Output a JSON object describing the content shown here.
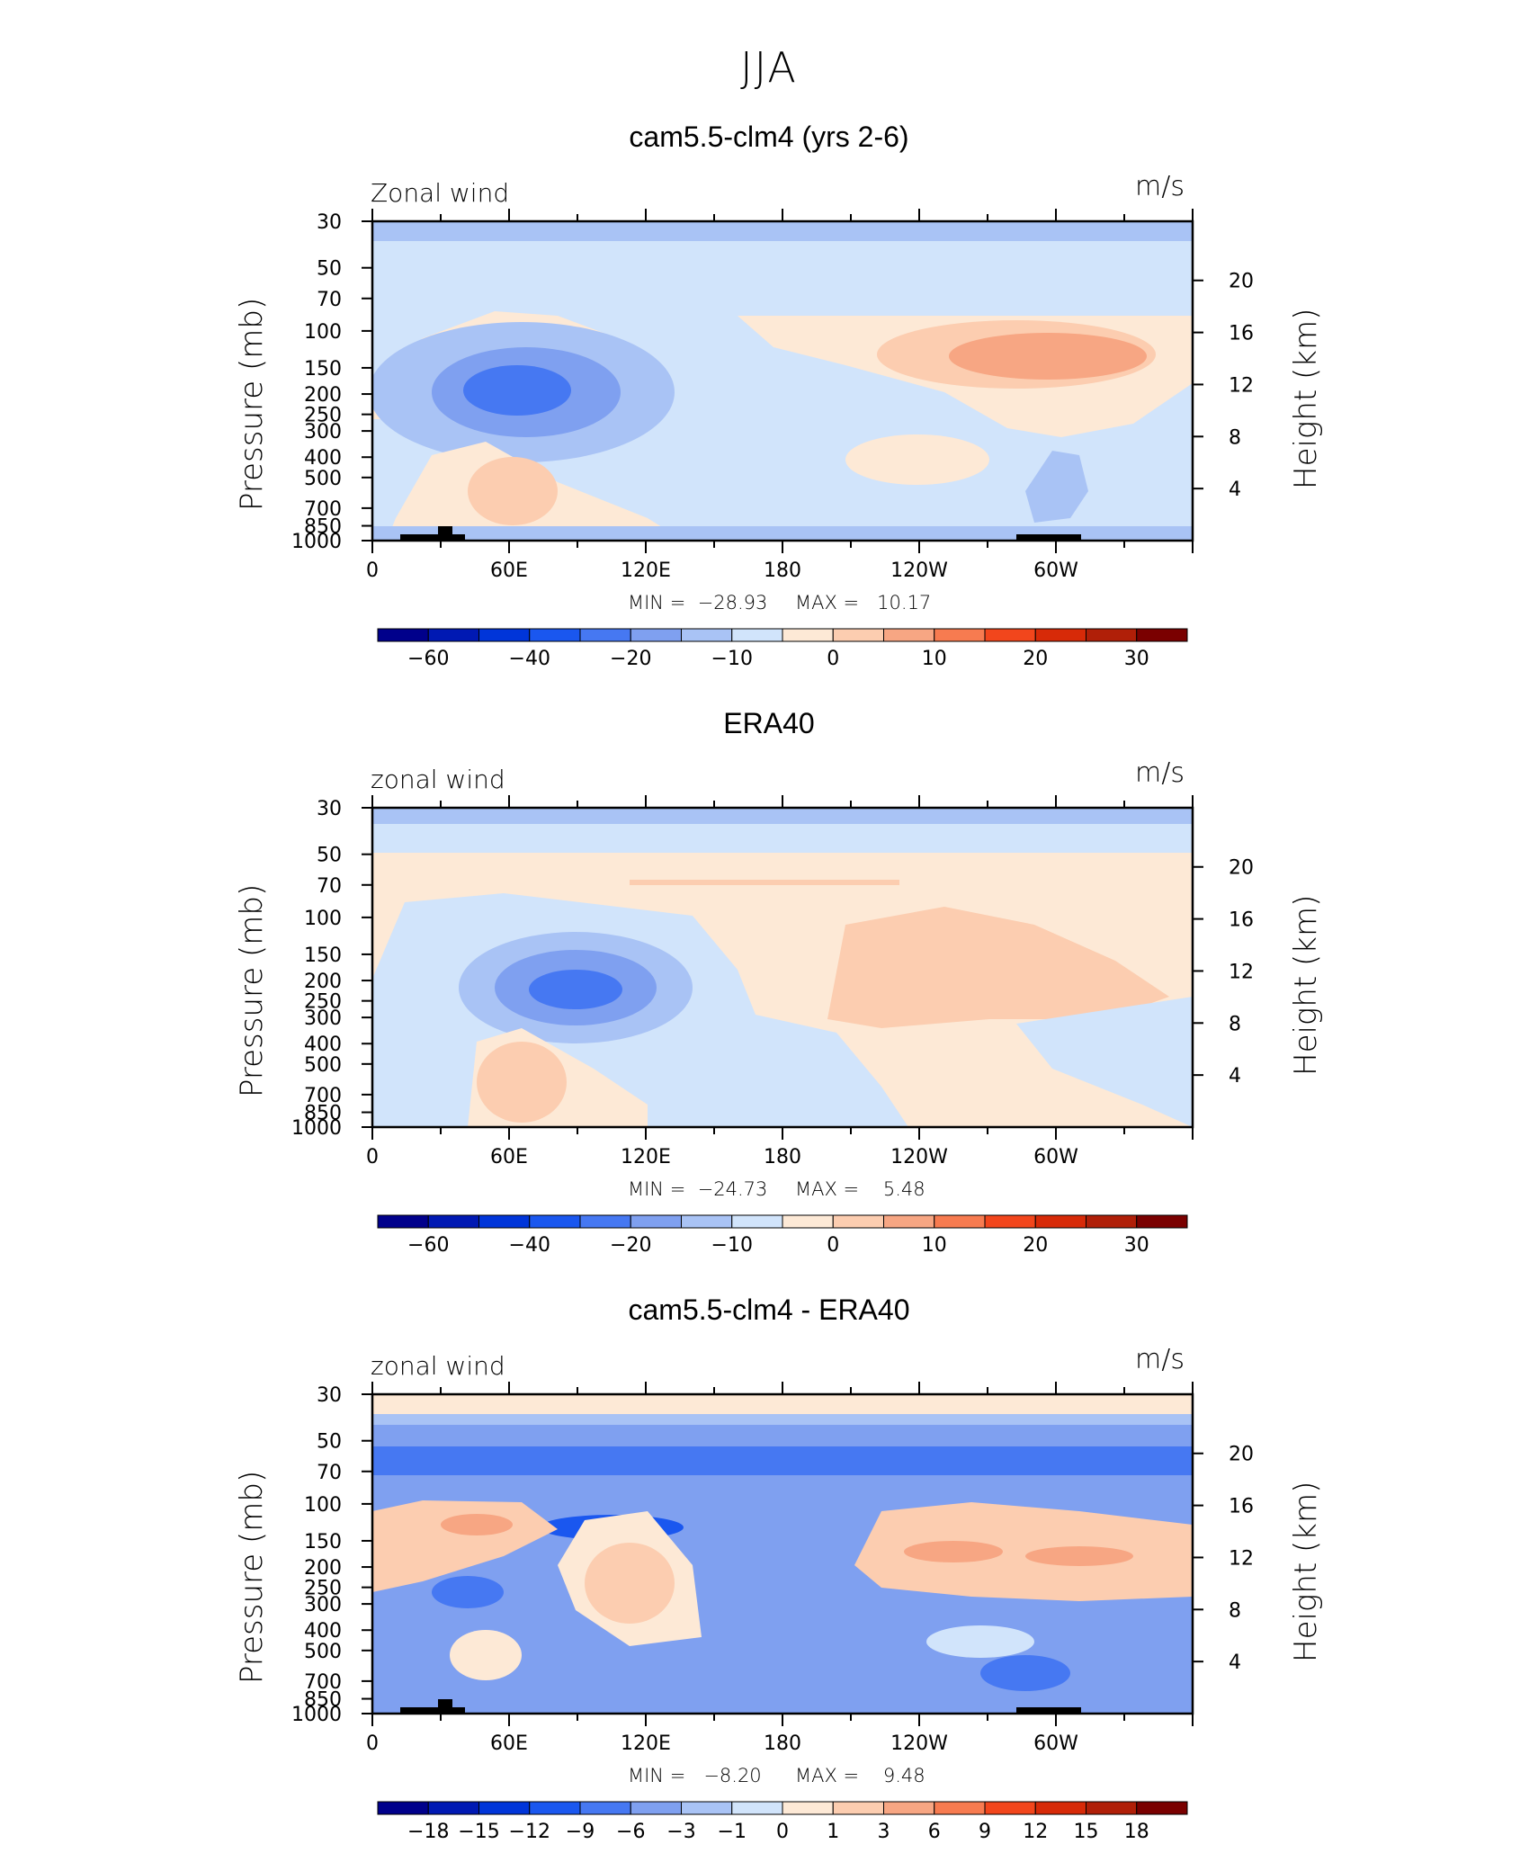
{
  "figure_title": "JJA",
  "chart_data": [
    {
      "type": "heatmap",
      "title": "cam5.5-clm4 (yrs 2-6)",
      "variable": "Zonal wind",
      "units": "m/s",
      "ylabel": "Pressure (mb)",
      "y2label": "Height (km)",
      "x_ticks": [
        "0",
        "60E",
        "120E",
        "180",
        "120W",
        "60W"
      ],
      "y_ticks": [
        "30",
        "50",
        "70",
        "100",
        "150",
        "200",
        "250",
        "300",
        "400",
        "500",
        "700",
        "850",
        "1000"
      ],
      "y2_ticks": [
        "20",
        "16",
        "12",
        "8",
        "4"
      ],
      "min_label": "MIN =  −28.93",
      "max_label": "MAX =   10.17",
      "min": -28.93,
      "max": 10.17,
      "colorbar_labels": [
        "−60",
        "−40",
        "−20",
        "−10",
        "0",
        "10",
        "20",
        "30"
      ],
      "colorbar_levels": 16,
      "features": [
        {
          "name": "easterly-jet-core",
          "lon": 65,
          "pressure": 150,
          "value": -28
        },
        {
          "name": "westerly-max",
          "lon": 270,
          "pressure": 150,
          "value": 10
        }
      ]
    },
    {
      "type": "heatmap",
      "title": "ERA40",
      "variable": "zonal wind",
      "units": "m/s",
      "ylabel": "Pressure (mb)",
      "y2label": "Height (km)",
      "x_ticks": [
        "0",
        "60E",
        "120E",
        "180",
        "120W",
        "60W"
      ],
      "y_ticks": [
        "30",
        "50",
        "70",
        "100",
        "150",
        "200",
        "250",
        "300",
        "400",
        "500",
        "700",
        "850",
        "1000"
      ],
      "y2_ticks": [
        "20",
        "16",
        "12",
        "8",
        "4"
      ],
      "min_label": "MIN =  −24.73",
      "max_label": "MAX =    5.48",
      "min": -24.73,
      "max": 5.48,
      "colorbar_labels": [
        "−60",
        "−40",
        "−20",
        "−10",
        "0",
        "10",
        "20",
        "30"
      ],
      "colorbar_levels": 16,
      "features": [
        {
          "name": "easterly-jet-core",
          "lon": 70,
          "pressure": 150,
          "value": -24
        },
        {
          "name": "westerly-max",
          "lon": 250,
          "pressure": 150,
          "value": 5
        }
      ]
    },
    {
      "type": "heatmap",
      "title": "cam5.5-clm4 - ERA40",
      "variable": "zonal wind",
      "units": "m/s",
      "ylabel": "Pressure (mb)",
      "y2label": "Height (km)",
      "x_ticks": [
        "0",
        "60E",
        "120E",
        "180",
        "120W",
        "60W"
      ],
      "y_ticks": [
        "30",
        "50",
        "70",
        "100",
        "150",
        "200",
        "250",
        "300",
        "400",
        "500",
        "700",
        "850",
        "1000"
      ],
      "y2_ticks": [
        "20",
        "16",
        "12",
        "8",
        "4"
      ],
      "min_label": "MIN =   −8.20",
      "max_label": "MAX =    9.48",
      "min": -8.2,
      "max": 9.48,
      "colorbar_labels": [
        "−18",
        "−15",
        "−12",
        "−9",
        "−6",
        "−3",
        "−1",
        "0",
        "1",
        "3",
        "6",
        "9",
        "12",
        "15",
        "18"
      ],
      "colorbar_levels": 16,
      "features": [
        {
          "name": "upper-negative-band",
          "pressure": 70,
          "value": -6
        },
        {
          "name": "positive-max",
          "lon": 250,
          "pressure": 150,
          "value": 9
        }
      ]
    }
  ],
  "colors": {
    "scale": [
      "#00008b",
      "#0019b3",
      "#0035d9",
      "#1a57ef",
      "#4678f2",
      "#7fa0f0",
      "#a9c3f5",
      "#d1e4fb",
      "#fde9d6",
      "#fccdb0",
      "#f7a683",
      "#f77b50",
      "#f2461c",
      "#d72a08",
      "#b01f08",
      "#7a0000"
    ],
    "land": "#000000"
  }
}
